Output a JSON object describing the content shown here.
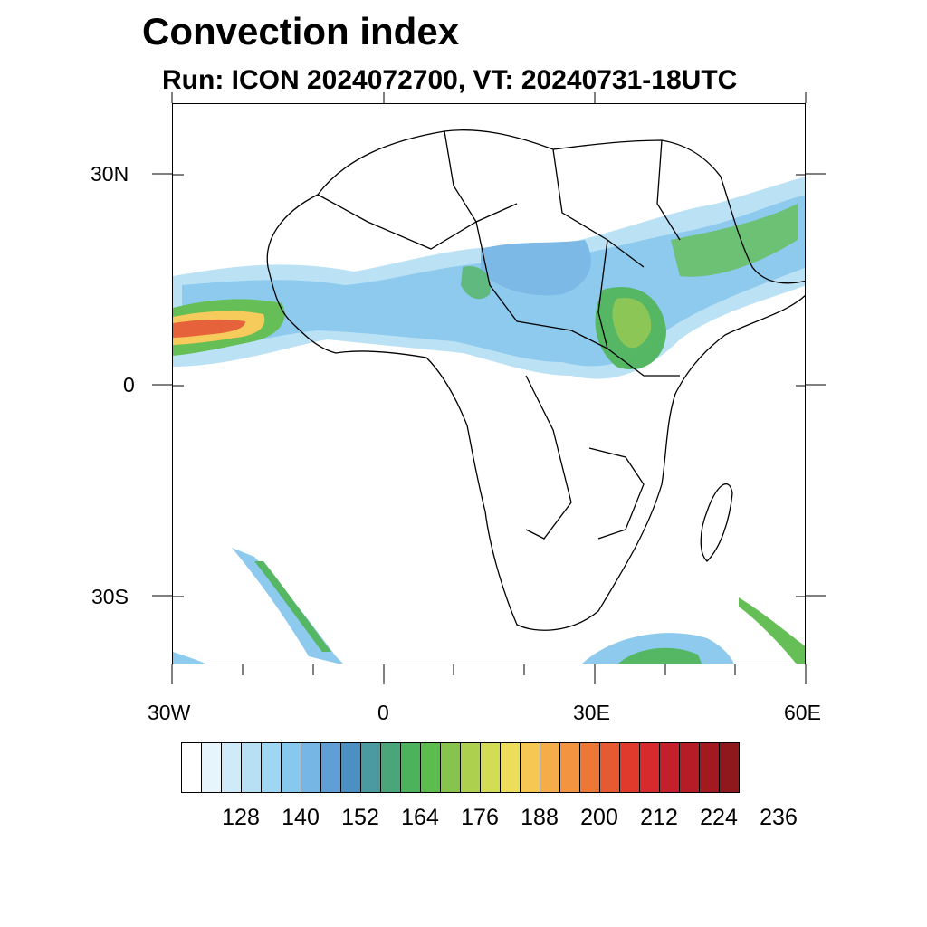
{
  "title": "Convection index",
  "subtitle": "Run: ICON 2024072700,  VT: 20240731-18UTC",
  "map": {
    "lat_labels": [
      "30N",
      "0",
      "30S"
    ],
    "lon_labels": [
      "30W",
      "0",
      "30E",
      "60E"
    ],
    "lat_range": [
      -40,
      40
    ],
    "lon_range": [
      -30,
      60
    ]
  },
  "colorbar": {
    "colors": [
      "#ffffff",
      "#e6f4fb",
      "#cfeaf8",
      "#b8e0f5",
      "#9fd6f3",
      "#87c8ee",
      "#75b6e5",
      "#5f9fd6",
      "#4c8fc3",
      "#4a9aa0",
      "#4aa67a",
      "#4cb35c",
      "#5dbc4e",
      "#86c44e",
      "#aed04f",
      "#d2dc54",
      "#ecde5a",
      "#f6c853",
      "#f5ad49",
      "#f29440",
      "#ec7737",
      "#e55a30",
      "#e03a2c",
      "#d62a2c",
      "#c4202b",
      "#b51c25",
      "#a21a20",
      "#8e181c"
    ],
    "labels": [
      "128",
      "140",
      "152",
      "164",
      "176",
      "188",
      "200",
      "212",
      "224",
      "236"
    ]
  }
}
